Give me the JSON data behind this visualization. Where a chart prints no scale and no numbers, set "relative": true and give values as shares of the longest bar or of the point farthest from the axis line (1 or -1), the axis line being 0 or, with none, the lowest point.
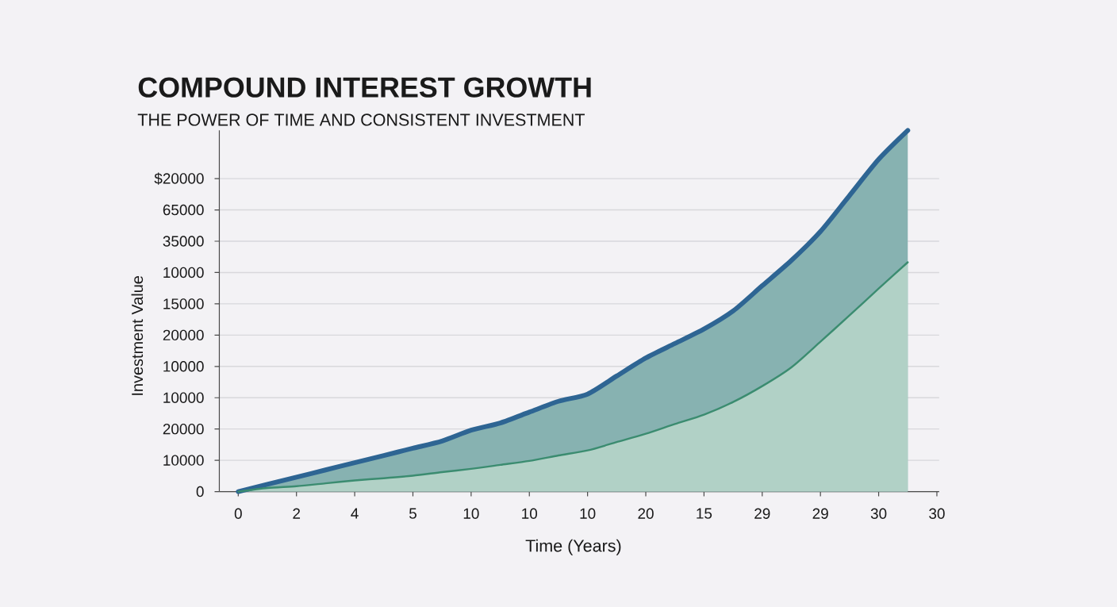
{
  "chart_data": {
    "type": "area",
    "title": "COMPOUND INTEREST GROWTH",
    "subtitle": "THE POWER OF TIME AND CONSISTENT INVESTMENT",
    "xlabel": "Time (Years)",
    "ylabel": "Investment Value",
    "categories": [
      "0",
      null,
      "2",
      null,
      "4",
      null,
      "5",
      null,
      "10",
      null,
      "10",
      null,
      "10",
      null,
      "20",
      null,
      "15",
      null,
      "29",
      null,
      "29",
      null,
      "30",
      null,
      "30"
    ],
    "relative": true,
    "annotations": [
      "$20000",
      "65000",
      "35000",
      "10000",
      "15000",
      "20000",
      "10000",
      "10000",
      "20000",
      "10000",
      "0"
    ],
    "grid": "y",
    "series": [
      {
        "color": "#2e6593",
        "values": [
          0,
          0.02,
          0.04,
          0.06,
          0.08,
          0.1,
          0.12,
          0.14,
          0.17,
          0.19,
          0.22,
          0.25,
          0.27,
          0.32,
          0.37,
          0.41,
          0.45,
          0.5,
          0.57,
          0.64,
          0.72,
          0.82,
          0.92,
          1,
          null
        ]
      },
      {
        "color": "#3b8c70",
        "values": [
          0,
          0.01,
          0.015,
          0.023,
          0.031,
          0.037,
          0.044,
          0.054,
          0.063,
          0.074,
          0.085,
          0.1,
          0.114,
          0.137,
          0.16,
          0.187,
          0.213,
          0.248,
          0.292,
          0.344,
          0.415,
          0.488,
          0.562,
          0.635,
          null
        ]
      }
    ]
  }
}
